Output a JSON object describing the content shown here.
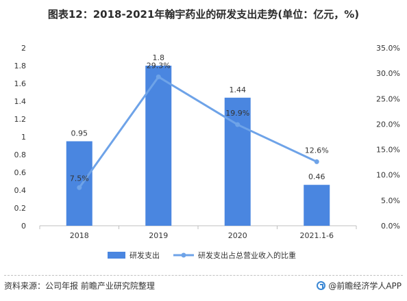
{
  "header": {
    "title": "图表12：2018-2021年翰宇药业的研发支出走势(单位：亿元，%)"
  },
  "chart_data": {
    "type": "bar+line",
    "categories": [
      "2018",
      "2019",
      "2020",
      "2021.1-6"
    ],
    "series": [
      {
        "name": "研发支出",
        "type": "bar",
        "axis": "left",
        "values": [
          0.95,
          1.8,
          1.44,
          0.46
        ],
        "labels": [
          "0.95",
          "1.8",
          "1.44",
          "0.46"
        ],
        "color": "#4a86e0"
      },
      {
        "name": "研发支出占总营业收入的比重",
        "type": "line",
        "axis": "right",
        "values": [
          7.5,
          29.3,
          19.9,
          12.6
        ],
        "labels": [
          "7.5%",
          "29.3%",
          "19.9%",
          "12.6%"
        ],
        "color": "#6ea3e8"
      }
    ],
    "y_left": {
      "min": 0,
      "max": 2,
      "ticks": [
        "0",
        "0.2",
        "0.4",
        "0.6",
        "0.8",
        "1",
        "1.2",
        "1.4",
        "1.6",
        "1.8",
        "2"
      ]
    },
    "y_right": {
      "min": 0,
      "max": 35,
      "ticks": [
        "0.0%",
        "5.0%",
        "10.0%",
        "15.0%",
        "20.0%",
        "25.0%",
        "30.0%",
        "35.0%"
      ]
    },
    "grid": false,
    "legend_position": "bottom"
  },
  "footer": {
    "source": "资料来源：公司年报 前瞻产业研究院整理",
    "brand": "@前瞻经济学人APP",
    "brand_icon": "qianzhan-logo-icon"
  }
}
